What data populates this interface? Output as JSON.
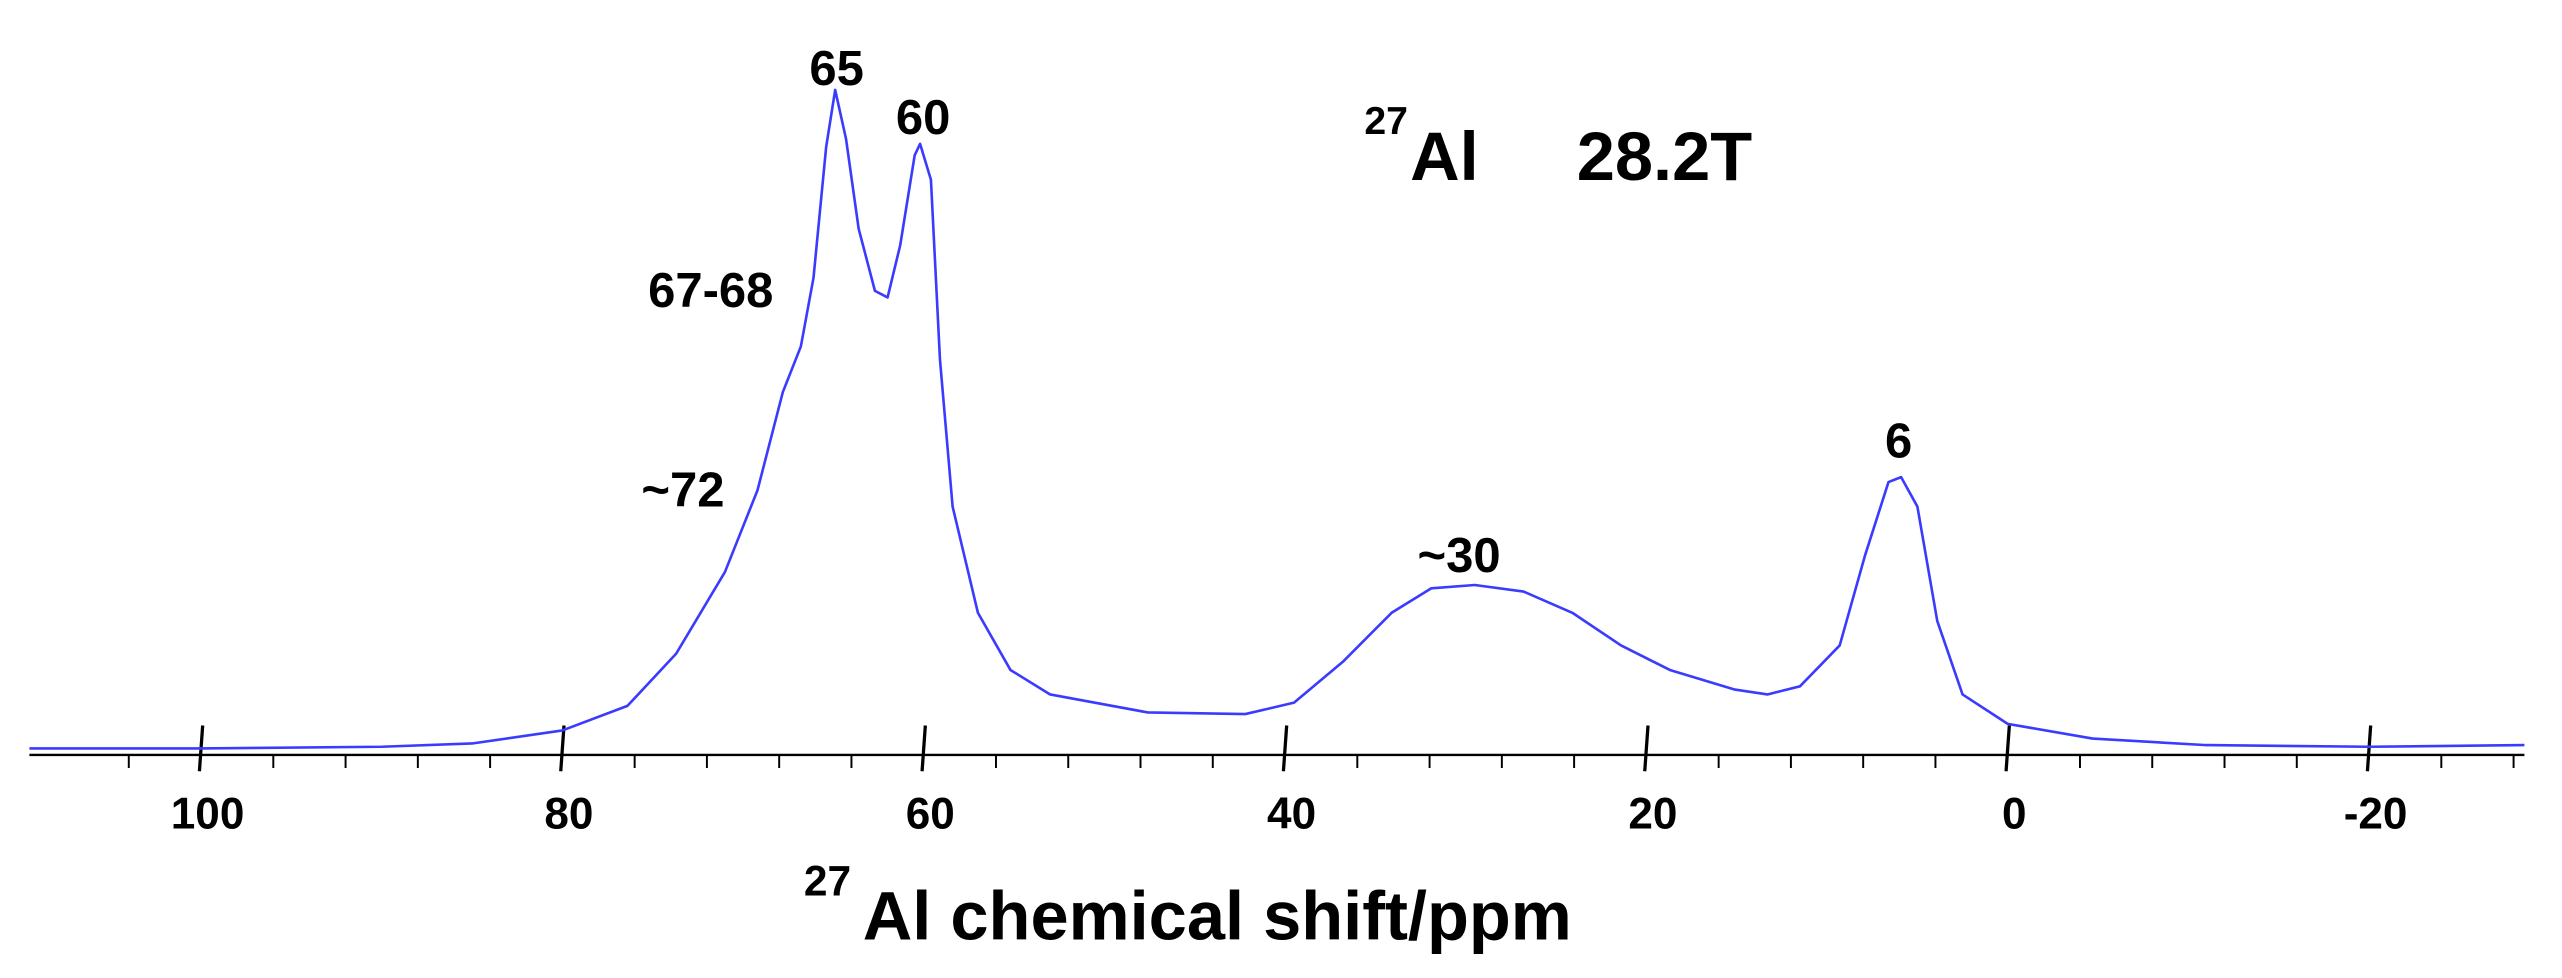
{
  "chart_data": {
    "type": "line",
    "title": {
      "mass": "27",
      "nucleus": "Al",
      "field": "28.2T"
    },
    "x_label": {
      "mass": "27",
      "text": "Al chemical shift/ppm"
    },
    "xlim": [
      109.5,
      -28.6
    ],
    "ylim": [
      0,
      420
    ],
    "xticks": [
      100,
      80,
      60,
      40,
      20,
      0,
      -20
    ],
    "xminorticks": [
      104,
      96,
      92,
      88,
      84,
      76,
      72,
      68,
      64,
      56,
      52,
      48,
      44,
      36,
      32,
      28,
      24,
      16,
      12,
      8,
      4,
      -4,
      -8,
      -12,
      -16,
      -24,
      -28
    ],
    "grid": false,
    "annotations": [
      "65",
      "60",
      "67-68",
      "~72",
      "~30",
      "6"
    ],
    "series": [
      {
        "color": "#3b3bff",
        "x": [
          109.5,
          100,
          90,
          85,
          80,
          76.4,
          73.7,
          71,
          69.2,
          67.8,
          66.8,
          66.1,
          65.4,
          64.9,
          64.3,
          63.6,
          62.7,
          62,
          61.3,
          60.5,
          60.2,
          59.6,
          59.1,
          58.4,
          57,
          55.2,
          53,
          47.6,
          42.2,
          39.5,
          36.8,
          34.1,
          31.9,
          29.5,
          26.8,
          24.1,
          21.4,
          18.7,
          15.1,
          13.3,
          11.5,
          9.3,
          7.9,
          6.6,
          5.9,
          5.0,
          3.9,
          2.5,
          0,
          -4.7,
          -11,
          -20,
          -28.6
        ],
        "values": [
          2,
          2,
          3,
          5,
          13,
          28,
          60,
          110,
          160,
          220,
          248,
          290,
          370,
          405,
          375,
          320,
          282,
          278,
          310,
          365,
          372,
          350,
          240,
          150,
          85,
          50,
          35,
          24,
          23,
          30,
          55,
          85,
          100,
          102,
          98,
          85,
          65,
          50,
          38,
          35,
          40,
          65,
          120,
          165,
          168,
          150,
          80,
          35,
          17,
          8,
          4,
          3,
          4
        ]
      }
    ]
  }
}
